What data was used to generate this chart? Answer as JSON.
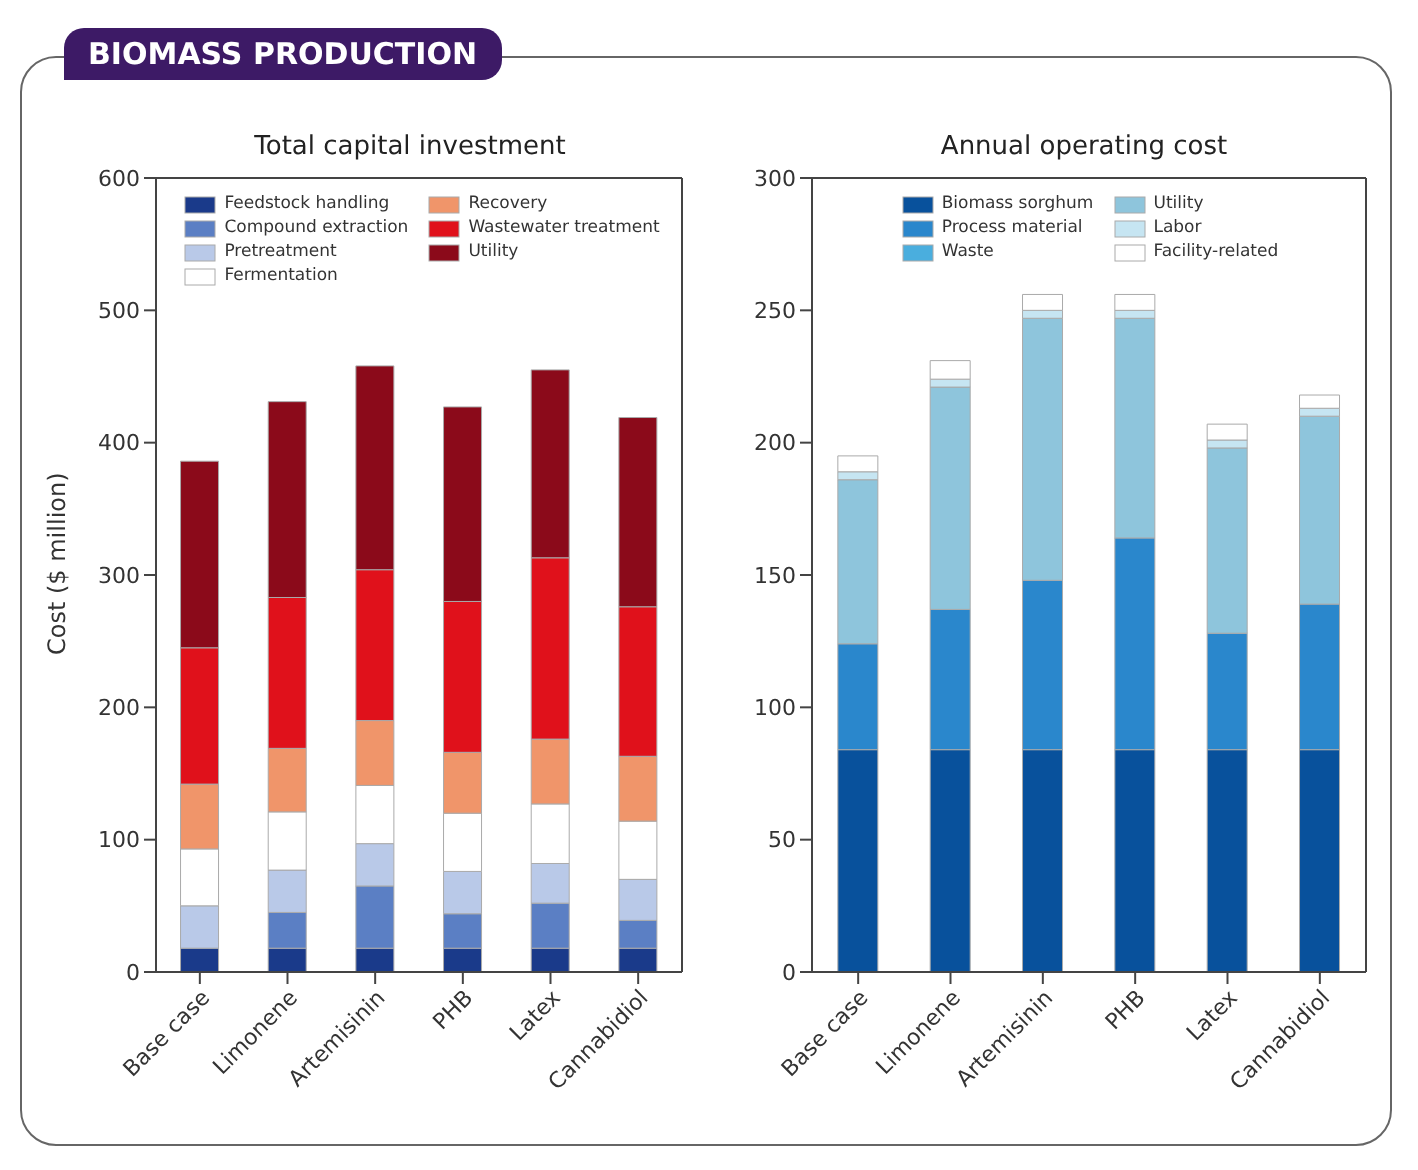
{
  "chart_data": [
    {
      "type": "bar",
      "title": "Total capital investment",
      "ylabel": "Cost ($ million)",
      "annotations": [
        "BIOMASS PRODUCTION"
      ],
      "stacked": true,
      "legend": "top",
      "ylim": [
        0,
        600
      ],
      "yticks": [
        0,
        100,
        200,
        300,
        400,
        500,
        600
      ],
      "categories": [
        "Base case",
        "Limonene",
        "Artemisinin",
        "PHB",
        "Latex",
        "Cannabidiol"
      ],
      "series": [
        {
          "name": "Feedstock handling",
          "color": "#1a3a8a",
          "values": [
            18,
            18,
            18,
            18,
            18,
            18
          ]
        },
        {
          "name": "Compound extraction",
          "color": "#5b7fc4",
          "values": [
            0,
            27,
            47,
            26,
            34,
            21
          ]
        },
        {
          "name": "Pretreatment",
          "color": "#b9c9e8",
          "values": [
            32,
            32,
            32,
            32,
            30,
            31
          ]
        },
        {
          "name": "Fermentation",
          "color": "#ffffff",
          "values": [
            43,
            44,
            44,
            44,
            45,
            44
          ]
        },
        {
          "name": "Recovery",
          "color": "#f0956a",
          "values": [
            49,
            48,
            49,
            46,
            49,
            49
          ]
        },
        {
          "name": "Wastewater treatment",
          "color": "#e0111b",
          "values": [
            103,
            114,
            114,
            114,
            137,
            113
          ]
        },
        {
          "name": "Utility",
          "color": "#8b0a1a",
          "values": [
            141,
            148,
            154,
            147,
            142,
            143
          ]
        }
      ]
    },
    {
      "type": "bar",
      "title": "Annual operating cost",
      "stacked": true,
      "legend": "top",
      "ylim": [
        0,
        300
      ],
      "yticks": [
        0,
        50,
        100,
        150,
        200,
        250,
        300
      ],
      "categories": [
        "Base case",
        "Limonene",
        "Artemisinin",
        "PHB",
        "Latex",
        "Cannabidiol"
      ],
      "series": [
        {
          "name": "Biomass sorghum",
          "color": "#08519c",
          "values": [
            84,
            84,
            84,
            84,
            84,
            84
          ]
        },
        {
          "name": "Process material",
          "color": "#2a87cc",
          "values": [
            40,
            53,
            64,
            80,
            44,
            55
          ]
        },
        {
          "name": "Waste",
          "color": "#4aaede",
          "values": [
            0,
            0,
            0,
            0,
            0,
            0
          ]
        },
        {
          "name": "Utility",
          "color": "#8ec5dc",
          "values": [
            62,
            84,
            99,
            83,
            70,
            71
          ]
        },
        {
          "name": "Labor",
          "color": "#c6e5f2",
          "values": [
            3,
            3,
            3,
            3,
            3,
            3
          ]
        },
        {
          "name": "Facility-related",
          "color": "#ffffff",
          "values": [
            6,
            7,
            6,
            6,
            6,
            5
          ]
        }
      ]
    }
  ]
}
